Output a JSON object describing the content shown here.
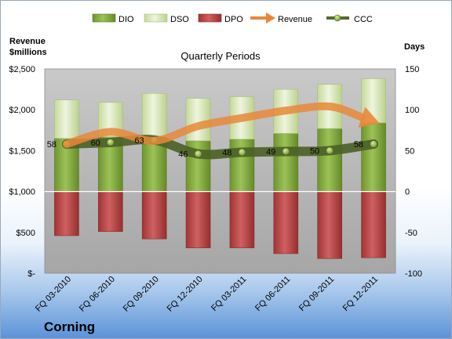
{
  "chart_data": {
    "type": "bar",
    "title": "Quarterly Periods",
    "company": "Corning",
    "left_axis": {
      "title_line1": "Revenue",
      "title_line2": "$millions",
      "min": 0,
      "max": 2500,
      "step": 500,
      "tick_labels": [
        "$-",
        "$500",
        "$1,000",
        "$1,500",
        "$2,000",
        "$2,500"
      ]
    },
    "right_axis": {
      "title": "Days",
      "min": -100,
      "max": 150,
      "step": 50,
      "tick_labels": [
        "-100",
        "-50",
        "0",
        "50",
        "100",
        "150"
      ]
    },
    "categories": [
      "FQ 03-2010",
      "FQ 06-2010",
      "FQ 09-2010",
      "FQ 12-2010",
      "FQ 03-2011",
      "FQ 06-2011",
      "FQ 09-2011",
      "FQ 12-2011"
    ],
    "series": [
      {
        "name": "DIO",
        "axis": "right",
        "color": "#7ea53a",
        "values": [
          65,
          67,
          67,
          62,
          64,
          71,
          77,
          84
        ]
      },
      {
        "name": "DSO",
        "axis": "right",
        "color": "#d8e8b4",
        "values": [
          47,
          42,
          53,
          52,
          52,
          54,
          54,
          54
        ]
      },
      {
        "name": "DPO",
        "axis": "right",
        "color": "#b53f3f",
        "values": [
          -54,
          -49,
          -58,
          -69,
          -69,
          -76,
          -82,
          -81
        ]
      },
      {
        "name": "Revenue",
        "axis": "left",
        "color": "#e8883a",
        "values": [
          1580,
          1730,
          1620,
          1800,
          1900,
          1990,
          2040,
          1860
        ]
      },
      {
        "name": "CCC",
        "axis": "right",
        "color": "#556b2f",
        "values": [
          58,
          60,
          63,
          46,
          48,
          49,
          50,
          58
        ]
      }
    ],
    "data_labels": [
      "58",
      "60",
      "63",
      "46",
      "48",
      "49",
      "50",
      "58"
    ],
    "legend": {
      "position": "top"
    },
    "grid": false
  }
}
